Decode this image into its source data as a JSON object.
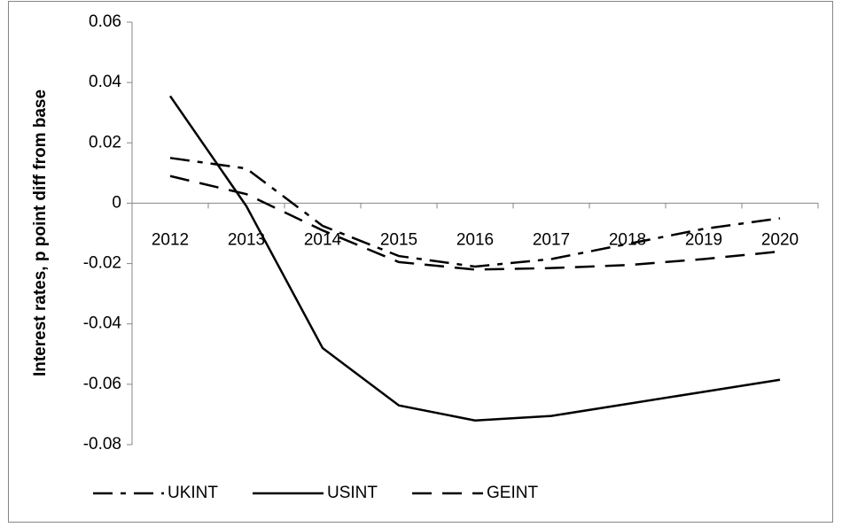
{
  "chart_data": {
    "type": "line",
    "y_label": "Interest rates, p point diff from base",
    "categories": [
      "2012",
      "2013",
      "2014",
      "2015",
      "2016",
      "2017",
      "2018",
      "2019",
      "2020"
    ],
    "series": [
      {
        "name": "UKINT",
        "color": "#000000",
        "line_style": "dash-dot",
        "values": [
          0.015,
          0.0115,
          -0.0075,
          -0.0175,
          -0.021,
          -0.0185,
          -0.0135,
          -0.0085,
          -0.005
        ]
      },
      {
        "name": "USINT",
        "color": "#000000",
        "line_style": "solid",
        "values": [
          0.0355,
          -0.001,
          -0.048,
          -0.067,
          -0.072,
          -0.0705,
          -0.0665,
          -0.0625,
          -0.0585
        ]
      },
      {
        "name": "GEINT",
        "color": "#000000",
        "line_style": "dash",
        "values": [
          0.009,
          0.003,
          -0.009,
          -0.0195,
          -0.022,
          -0.0215,
          -0.0205,
          -0.0185,
          -0.016
        ]
      }
    ],
    "ylim": [
      -0.08,
      0.06
    ],
    "yticks": [
      -0.08,
      -0.06,
      -0.04,
      -0.02,
      0,
      0.02,
      0.04,
      0.06
    ],
    "grid": false,
    "legend": "bottom"
  }
}
